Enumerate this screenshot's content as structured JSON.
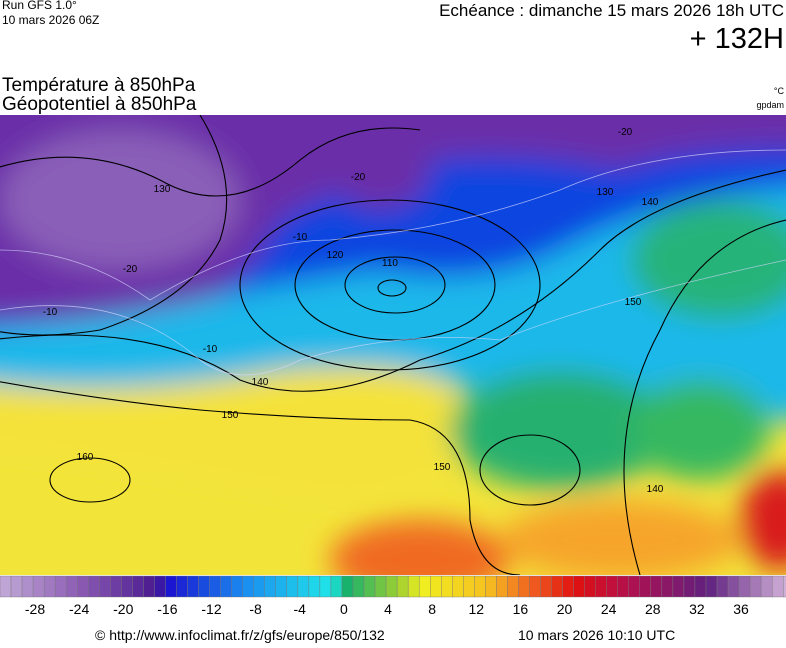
{
  "header": {
    "run": "Run GFS 1.0°",
    "run_date": "10 mars 2026 06Z",
    "echeance": "Echéance : dimanche 15 mars 2026 18h UTC",
    "lead": "+ 132H",
    "field1": "Température à 850hPa",
    "field2": "Géopotentiel à 850hPa",
    "unit1": "°C",
    "unit2": "gpdam"
  },
  "map": {
    "contour_labels": [
      "130",
      "120",
      "110",
      "140",
      "150",
      "160",
      "150",
      "140",
      "130",
      "140",
      "150",
      "-10",
      "-20",
      "-20",
      "-10",
      "-10",
      "-20"
    ]
  },
  "colorbar": {
    "ticks": [
      -28,
      -24,
      -20,
      -16,
      -12,
      -8,
      -4,
      0,
      4,
      8,
      12,
      16,
      20,
      24,
      28,
      32,
      36
    ]
  },
  "footer": {
    "url": "© http://www.infoclimat.fr/z/gfs/europe/850/132",
    "timestamp": "10 mars 2026 10:10 UTC"
  }
}
